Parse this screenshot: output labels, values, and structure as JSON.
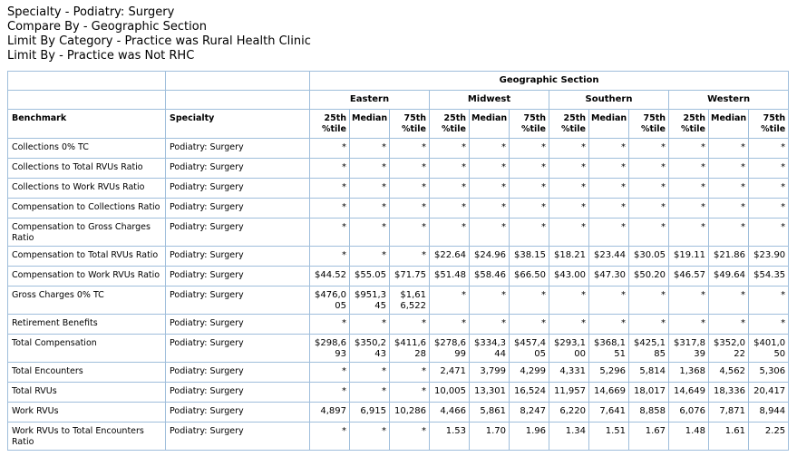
{
  "report": {
    "filter_lines": [
      "Specialty - Podiatry: Surgery",
      "Compare By - Geographic Section",
      "Limit By Category - Practice was Rural Health Clinic",
      "Limit By - Practice was Not RHC"
    ]
  },
  "table": {
    "group_header": "Geographic Section",
    "sections": [
      "Eastern",
      "Midwest",
      "Southern",
      "Western"
    ],
    "subcolumns": [
      "25th %tile",
      "Median",
      "75th %tile"
    ],
    "benchmark_header": "Benchmark",
    "specialty_header": "Specialty",
    "rows": [
      {
        "benchmark": "Collections 0% TC",
        "specialty": "Podiatry: Surgery",
        "values": [
          "*",
          "*",
          "*",
          "*",
          "*",
          "*",
          "*",
          "*",
          "*",
          "*",
          "*",
          "*"
        ]
      },
      {
        "benchmark": "Collections to Total RVUs Ratio",
        "specialty": "Podiatry: Surgery",
        "values": [
          "*",
          "*",
          "*",
          "*",
          "*",
          "*",
          "*",
          "*",
          "*",
          "*",
          "*",
          "*"
        ]
      },
      {
        "benchmark": "Collections to Work RVUs Ratio",
        "specialty": "Podiatry: Surgery",
        "values": [
          "*",
          "*",
          "*",
          "*",
          "*",
          "*",
          "*",
          "*",
          "*",
          "*",
          "*",
          "*"
        ]
      },
      {
        "benchmark": "Compensation to Collections Ratio",
        "specialty": "Podiatry: Surgery",
        "values": [
          "*",
          "*",
          "*",
          "*",
          "*",
          "*",
          "*",
          "*",
          "*",
          "*",
          "*",
          "*"
        ]
      },
      {
        "benchmark": "Compensation to Gross Charges Ratio",
        "specialty": "Podiatry: Surgery",
        "values": [
          "*",
          "*",
          "*",
          "*",
          "*",
          "*",
          "*",
          "*",
          "*",
          "*",
          "*",
          "*"
        ]
      },
      {
        "benchmark": "Compensation to Total RVUs Ratio",
        "specialty": "Podiatry: Surgery",
        "values": [
          "*",
          "*",
          "*",
          "$22.64",
          "$24.96",
          "$38.15",
          "$18.21",
          "$23.44",
          "$30.05",
          "$19.11",
          "$21.86",
          "$23.90"
        ]
      },
      {
        "benchmark": "Compensation to Work RVUs Ratio",
        "specialty": "Podiatry: Surgery",
        "values": [
          "$44.52",
          "$55.05",
          "$71.75",
          "$51.48",
          "$58.46",
          "$66.50",
          "$43.00",
          "$47.30",
          "$50.20",
          "$46.57",
          "$49.64",
          "$54.35"
        ]
      },
      {
        "benchmark": "Gross Charges 0% TC",
        "specialty": "Podiatry: Surgery",
        "values": [
          "$476,005",
          "$951,345",
          "$1,616,522",
          "*",
          "*",
          "*",
          "*",
          "*",
          "*",
          "*",
          "*",
          "*"
        ]
      },
      {
        "benchmark": "Retirement Benefits",
        "specialty": "Podiatry: Surgery",
        "values": [
          "*",
          "*",
          "*",
          "*",
          "*",
          "*",
          "*",
          "*",
          "*",
          "*",
          "*",
          "*"
        ]
      },
      {
        "benchmark": "Total Compensation",
        "specialty": "Podiatry: Surgery",
        "values": [
          "$298,693",
          "$350,243",
          "$411,628",
          "$278,699",
          "$334,344",
          "$457,405",
          "$293,100",
          "$368,151",
          "$425,185",
          "$317,839",
          "$352,022",
          "$401,050"
        ]
      },
      {
        "benchmark": "Total Encounters",
        "specialty": "Podiatry: Surgery",
        "values": [
          "*",
          "*",
          "*",
          "2,471",
          "3,799",
          "4,299",
          "4,331",
          "5,296",
          "5,814",
          "1,368",
          "4,562",
          "5,306"
        ]
      },
      {
        "benchmark": "Total RVUs",
        "specialty": "Podiatry: Surgery",
        "values": [
          "*",
          "*",
          "*",
          "10,005",
          "13,301",
          "16,524",
          "11,957",
          "14,669",
          "18,017",
          "14,649",
          "18,336",
          "20,417"
        ]
      },
      {
        "benchmark": "Work RVUs",
        "specialty": "Podiatry: Surgery",
        "values": [
          "4,897",
          "6,915",
          "10,286",
          "4,466",
          "5,861",
          "8,247",
          "6,220",
          "7,641",
          "8,858",
          "6,076",
          "7,871",
          "8,944"
        ]
      },
      {
        "benchmark": "Work RVUs to Total Encounters Ratio",
        "specialty": "Podiatry: Surgery",
        "values": [
          "*",
          "*",
          "*",
          "1.53",
          "1.70",
          "1.96",
          "1.34",
          "1.51",
          "1.67",
          "1.48",
          "1.61",
          "2.25"
        ]
      }
    ]
  },
  "colors": {
    "border": "#9FBEDB",
    "text": "#000000",
    "background": "#FFFFFF"
  }
}
